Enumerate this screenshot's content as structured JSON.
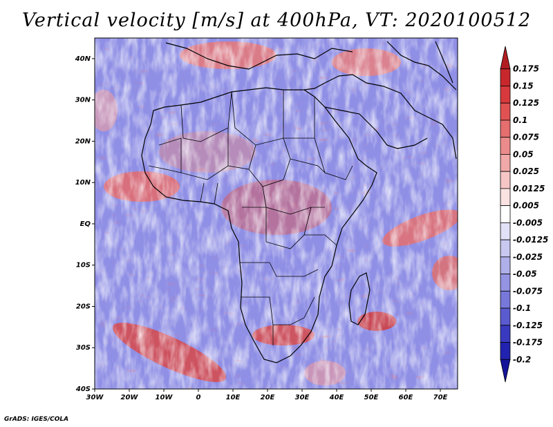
{
  "title": "Vertical velocity [m/s] at 400hPa, VT: 2020100512",
  "footer": "GrADS: IGES/COLA",
  "map": {
    "projection": "latlon",
    "lon_range": [
      -30,
      75
    ],
    "lat_range": [
      -40,
      45
    ],
    "lon_ticks": [
      "30W",
      "20W",
      "10W",
      "0",
      "10E",
      "20E",
      "30E",
      "40E",
      "50E",
      "60E",
      "70E"
    ],
    "lat_ticks": [
      "40N",
      "30N",
      "20N",
      "10N",
      "EQ",
      "10S",
      "20S",
      "30S",
      "40S"
    ]
  },
  "colorbar": {
    "labels": [
      "0.175",
      "0.15",
      "0.125",
      "0.1",
      "0.075",
      "0.05",
      "0.025",
      "0.0125",
      "0.005",
      "-0.005",
      "-0.0125",
      "-0.025",
      "-0.05",
      "-0.075",
      "-0.1",
      "-0.125",
      "-0.175",
      "-0.2"
    ],
    "colors": [
      "#b01e22",
      "#c8282c",
      "#d8393c",
      "#e05252",
      "#e56e6e",
      "#ec8b8b",
      "#f1a8a8",
      "#f6c6c6",
      "#fbe2e2",
      "#ffffff",
      "#e1e1f7",
      "#c8c8f0",
      "#afafea",
      "#9494e3",
      "#7878da",
      "#5b5bd0",
      "#3a3ac0",
      "#2222b0",
      "#14149a"
    ]
  }
}
